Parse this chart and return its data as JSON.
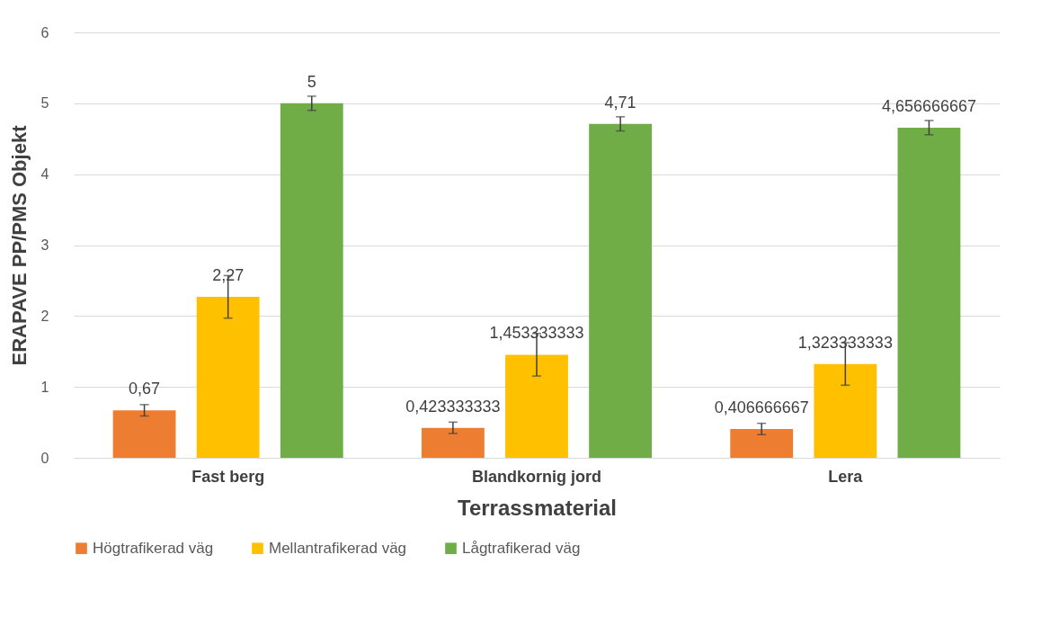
{
  "chart_data": {
    "type": "bar",
    "xlabel": "Terrassmaterial",
    "ylabel": "ERAPAVE PP/PMS Objekt",
    "categories": [
      "Fast berg",
      "Blandkornig jord",
      "Lera"
    ],
    "series": [
      {
        "name": "Högtrafikerad väg",
        "color": "#ed7d31",
        "values": [
          0.67,
          0.423333333,
          0.406666667
        ],
        "errors": [
          0.08,
          0.08,
          0.08
        ],
        "value_labels": [
          "0,67",
          "0,423333333",
          "0,406666667"
        ]
      },
      {
        "name": "Mellantrafikerad väg",
        "color": "#ffc000",
        "values": [
          2.27,
          1.453333333,
          1.323333333
        ],
        "errors": [
          0.3,
          0.3,
          0.3
        ],
        "value_labels": [
          "2,27",
          "1,453333333",
          "1,323333333"
        ]
      },
      {
        "name": "Lågtrafikerad väg",
        "color": "#70ad47",
        "values": [
          5,
          4.71,
          4.656666667
        ],
        "errors": [
          0.1,
          0.1,
          0.1
        ],
        "value_labels": [
          "5",
          "4,71",
          "4,656666667"
        ]
      }
    ],
    "ylim": [
      0,
      6
    ],
    "yticks": [
      0,
      1,
      2,
      3,
      4,
      5,
      6
    ],
    "grid": "y",
    "legend": "bottom"
  }
}
